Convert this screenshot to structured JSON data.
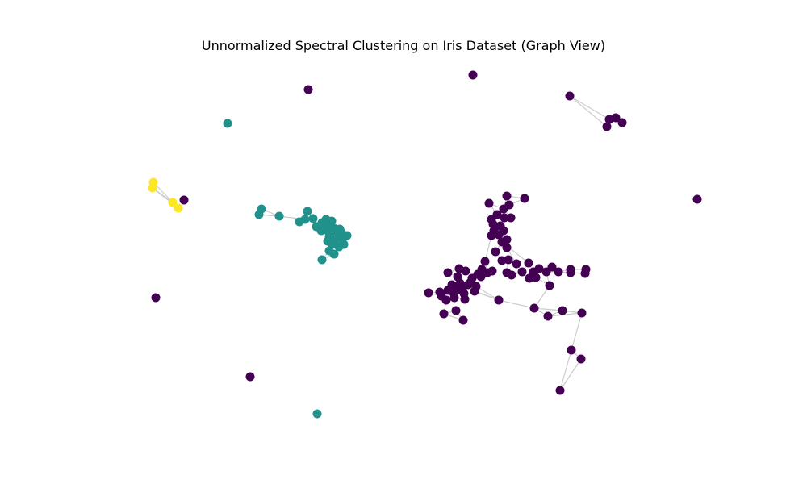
{
  "chart_data": {
    "type": "graph",
    "title": "Unnormalized Spectral Clustering on Iris Dataset (Graph View)",
    "axes_visible": false,
    "grid": false,
    "legend": "none",
    "cluster_colors": [
      "#440154",
      "#21918c",
      "#fde725"
    ],
    "edge_color": "#cccccc",
    "node_count": 150
  }
}
